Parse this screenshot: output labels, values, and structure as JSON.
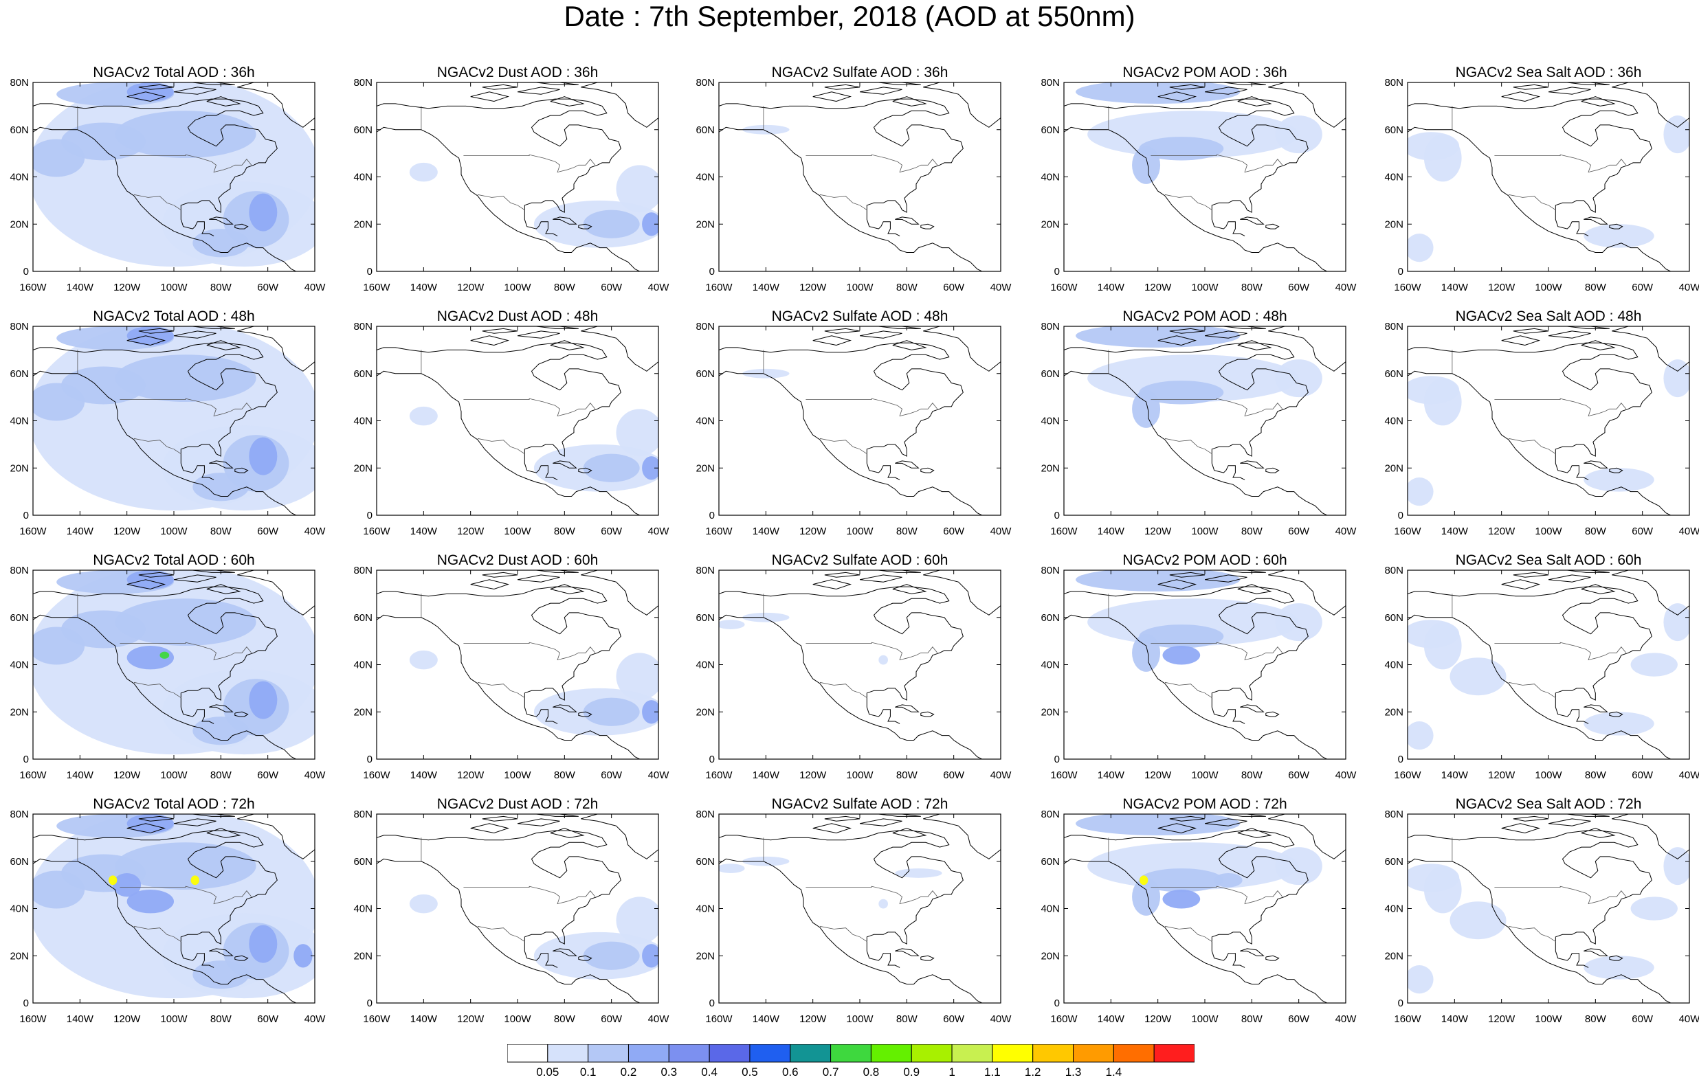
{
  "title": "Date : 7th September, 2018 (AOD at 550nm)",
  "x_tick_labels": [
    "160W",
    "140W",
    "120W",
    "100W",
    "80W",
    "60W",
    "40W"
  ],
  "y_tick_labels": [
    "0",
    "20N",
    "40N",
    "60N",
    "80N"
  ],
  "panel_rows": [
    [
      "NGACv2 Total AOD : 36h",
      "NGACv2 Dust AOD : 36h",
      "NGACv2 Sulfate AOD : 36h",
      "NGACv2 POM AOD : 36h",
      "NGACv2 Sea Salt AOD : 36h"
    ],
    [
      "NGACv2 Total AOD : 48h",
      "NGACv2 Dust AOD : 48h",
      "NGACv2 Sulfate AOD : 48h",
      "NGACv2 POM AOD : 48h",
      "NGACv2 Sea Salt AOD : 48h"
    ],
    [
      "NGACv2 Total AOD : 60h",
      "NGACv2 Dust AOD : 60h",
      "NGACv2 Sulfate AOD : 60h",
      "NGACv2 POM AOD : 60h",
      "NGACv2 Sea Salt AOD : 60h"
    ],
    [
      "NGACv2 Total AOD : 72h",
      "NGACv2 Dust AOD : 72h",
      "NGACv2 Sulfate AOD : 72h",
      "NGACv2 POM AOD : 72h",
      "NGACv2 Sea Salt  AOD : 72h"
    ]
  ],
  "colorbar": {
    "labels": [
      "0.05",
      "0.1",
      "0.2",
      "0.3",
      "0.4",
      "0.5",
      "0.6",
      "0.7",
      "0.8",
      "0.9",
      "1",
      "1.1",
      "1.2",
      "1.3",
      "1.4"
    ],
    "colors": [
      "#ffffff",
      "#d6e2fb",
      "#b4c8f6",
      "#90aaf5",
      "#7c90f0",
      "#5a68e8",
      "#1f5ff0",
      "#129494",
      "#3ed83e",
      "#64f000",
      "#a8f000",
      "#c8f050",
      "#ffff00",
      "#ffc800",
      "#ff9b00",
      "#ff6e00",
      "#ff1e1e"
    ]
  }
}
